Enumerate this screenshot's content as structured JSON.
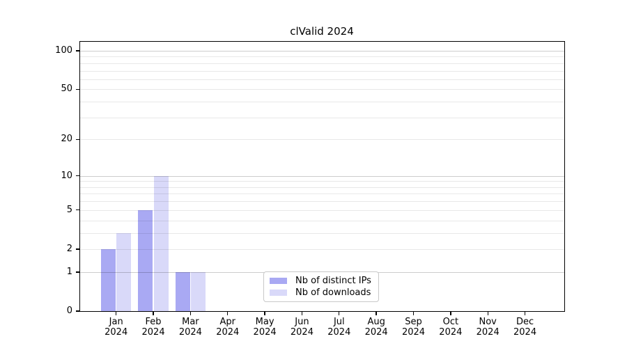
{
  "chart_data": {
    "type": "bar",
    "title": "clValid 2024",
    "year_label": "2024",
    "categories": [
      "Jan",
      "Feb",
      "Mar",
      "Apr",
      "May",
      "Jun",
      "Jul",
      "Aug",
      "Sep",
      "Oct",
      "Nov",
      "Dec"
    ],
    "series": [
      {
        "name": "Nb of distinct IPs",
        "color": "#a9a9f3",
        "values": [
          2,
          5,
          1,
          0,
          0,
          0,
          0,
          0,
          0,
          0,
          0,
          0
        ]
      },
      {
        "name": "Nb of downloads",
        "color": "#d9d9f9",
        "values": [
          3,
          10,
          1,
          0,
          0,
          0,
          0,
          0,
          0,
          0,
          0,
          0
        ]
      }
    ],
    "y_axis": {
      "scale": "log1p",
      "ticks": [
        100,
        50,
        20,
        10,
        5,
        2,
        1,
        0
      ],
      "range": [
        0,
        117
      ]
    },
    "gridlines": {
      "minor": [
        2,
        3,
        4,
        5,
        6,
        7,
        8,
        9,
        20,
        30,
        40,
        50,
        60,
        70,
        80,
        90
      ],
      "major": [
        1,
        10,
        100
      ]
    },
    "legend": {
      "position": "lower center",
      "items": [
        "Nb of distinct IPs",
        "Nb of downloads"
      ]
    },
    "colors": {
      "bar_distinct_ips": "#a9a9f3",
      "bar_downloads": "#d9d9f9",
      "grid_minor": "rgba(0,0,0,0.09)",
      "grid_major": "rgba(0,0,0,0.20)",
      "axis": "#000000",
      "legend_border": "#c8c8c8",
      "background": "#ffffff"
    }
  }
}
